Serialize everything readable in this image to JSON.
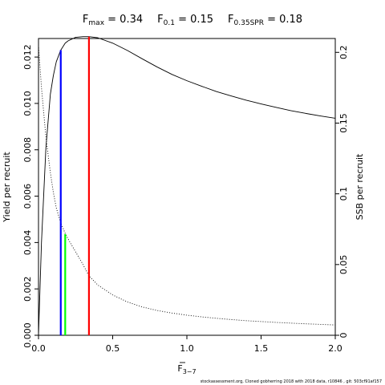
{
  "chart_data": {
    "type": "line",
    "title_parts": [
      {
        "base": "F",
        "sub": "max",
        "value": " = 0.34"
      },
      {
        "base": "F",
        "sub": "0.1",
        "value": " = 0.15"
      },
      {
        "base": "F",
        "sub": "0.35SPR",
        "value": " = 0.18"
      }
    ],
    "xlabel": {
      "base": "F",
      "sub": "3−7"
    },
    "ylabel_left": "Yield per recruit",
    "ylabel_right": "SSB per recruit",
    "xlim": [
      0,
      2.0
    ],
    "ylim_left": [
      0,
      0.0128
    ],
    "ylim_right": [
      0,
      0.2098
    ],
    "x_ticks": [
      0,
      0.5,
      1.0,
      1.5,
      2.0
    ],
    "x_tick_labels": [
      "0.0",
      "0.5",
      "1.0",
      "1.5",
      "2.0"
    ],
    "y_left_ticks": [
      0,
      0.002,
      0.004,
      0.006,
      0.008,
      0.01,
      0.012
    ],
    "y_left_tick_labels": [
      "0.000",
      "0.002",
      "0.004",
      "0.006",
      "0.008",
      "0.010",
      "0.012"
    ],
    "y_right_ticks": [
      0,
      0.05,
      0.1,
      0.15,
      0.2
    ],
    "y_right_tick_labels": [
      "0",
      "0.05",
      "0.1",
      "0.15",
      "0.2"
    ],
    "series": [
      {
        "axis": "left",
        "style": "solid",
        "color": "#000000",
        "x": [
          0,
          0.02,
          0.05,
          0.08,
          0.1,
          0.12,
          0.15,
          0.18,
          0.2,
          0.25,
          0.3,
          0.34,
          0.4,
          0.5,
          0.6,
          0.7,
          0.8,
          0.9,
          1.0,
          1.1,
          1.2,
          1.3,
          1.4,
          1.5,
          1.6,
          1.7,
          1.8,
          1.9,
          2.0
        ],
        "y": [
          0,
          0.004,
          0.0081,
          0.0104,
          0.0112,
          0.0118,
          0.0123,
          0.0126,
          0.0127,
          0.01285,
          0.01288,
          0.01288,
          0.01283,
          0.0126,
          0.01228,
          0.01192,
          0.01157,
          0.01125,
          0.01098,
          0.01074,
          0.01051,
          0.01032,
          0.01014,
          0.00998,
          0.00983,
          0.00969,
          0.00957,
          0.00946,
          0.00936
        ]
      },
      {
        "axis": "right",
        "style": "dotted",
        "color": "#000000",
        "x": [
          0,
          0.02,
          0.05,
          0.08,
          0.1,
          0.12,
          0.15,
          0.18,
          0.2,
          0.25,
          0.3,
          0.34,
          0.4,
          0.5,
          0.6,
          0.7,
          0.8,
          0.9,
          1.0,
          1.1,
          1.2,
          1.3,
          1.4,
          1.5,
          1.6,
          1.7,
          1.8,
          1.9,
          2.0
        ],
        "y": [
          0.205,
          0.175,
          0.14,
          0.115,
          0.101,
          0.09,
          0.0795,
          0.072,
          0.068,
          0.059,
          0.05,
          0.042,
          0.0355,
          0.0285,
          0.0235,
          0.02,
          0.0175,
          0.0157,
          0.0142,
          0.013,
          0.012,
          0.0111,
          0.0103,
          0.0097,
          0.0091,
          0.0086,
          0.0081,
          0.0077,
          0.0073
        ]
      }
    ],
    "reference_lines": [
      {
        "name": "F0.1",
        "x": 0.15,
        "axis": "left",
        "y": 0.0123,
        "color": "#0000ff"
      },
      {
        "name": "F0.35SPR",
        "x": 0.18,
        "axis": "right",
        "y": 0.0715,
        "color": "#00ff00"
      },
      {
        "name": "Fmax",
        "x": 0.34,
        "axis": "left",
        "y": 0.01288,
        "color": "#ff0000"
      }
    ]
  },
  "footer": "stockassessment.org,  Cloned  gobherring  2018  with  2018  data,  r10846  ,  git:  503cf91af157"
}
